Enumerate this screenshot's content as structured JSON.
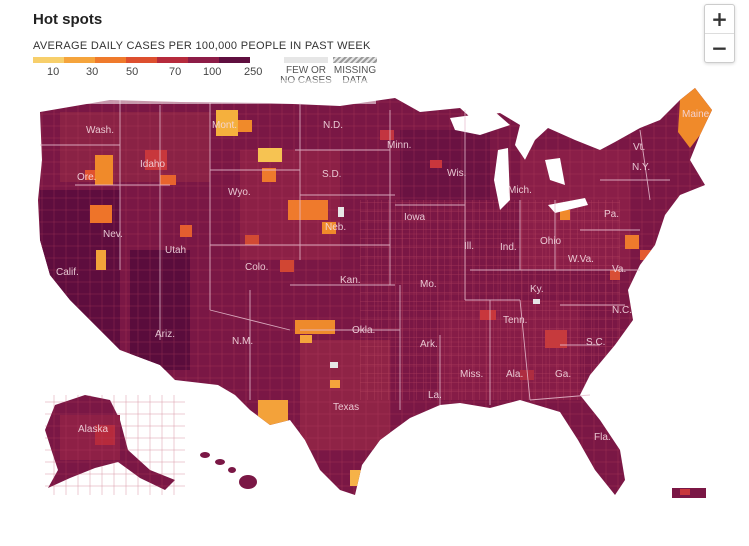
{
  "title": "Hot spots",
  "legend": {
    "label": "AVERAGE DAILY CASES PER 100,000 PEOPLE IN PAST WEEK",
    "ticks": [
      "10",
      "30",
      "50",
      "70",
      "100",
      "250"
    ],
    "colors": [
      "#f7cf6b",
      "#f5a43c",
      "#ef7a2c",
      "#dd4f2f",
      "#b62a3c",
      "#8d1c47",
      "#5f0e3f"
    ],
    "few_or_no_cases": "FEW OR NO CASES",
    "missing_data": "MISSING DATA",
    "few_color": "#e6e6e6",
    "missing_pattern": "hatched"
  },
  "zoom": {
    "in": "+",
    "out": "−"
  },
  "map": {
    "ocean_bg": "#ffffff",
    "base_color": "#7a1745",
    "states": [
      "Wash.",
      "Ore.",
      "Idaho",
      "Mont.",
      "N.D.",
      "Minn.",
      "Wis.",
      "Mich.",
      "N.Y.",
      "Vt.",
      "Maine",
      "Calif.",
      "Nev.",
      "Utah",
      "Wyo.",
      "S.D.",
      "Neb.",
      "Iowa",
      "Ill.",
      "Ind.",
      "Ohio",
      "Pa.",
      "W.Va.",
      "Va.",
      "Colo.",
      "Kan.",
      "Mo.",
      "Ky.",
      "N.C.",
      "Tenn.",
      "Ariz.",
      "N.M.",
      "Okla.",
      "Ark.",
      "S.C.",
      "Miss.",
      "Ala.",
      "Ga.",
      "Texas",
      "La.",
      "Fla.",
      "Alaska"
    ]
  }
}
